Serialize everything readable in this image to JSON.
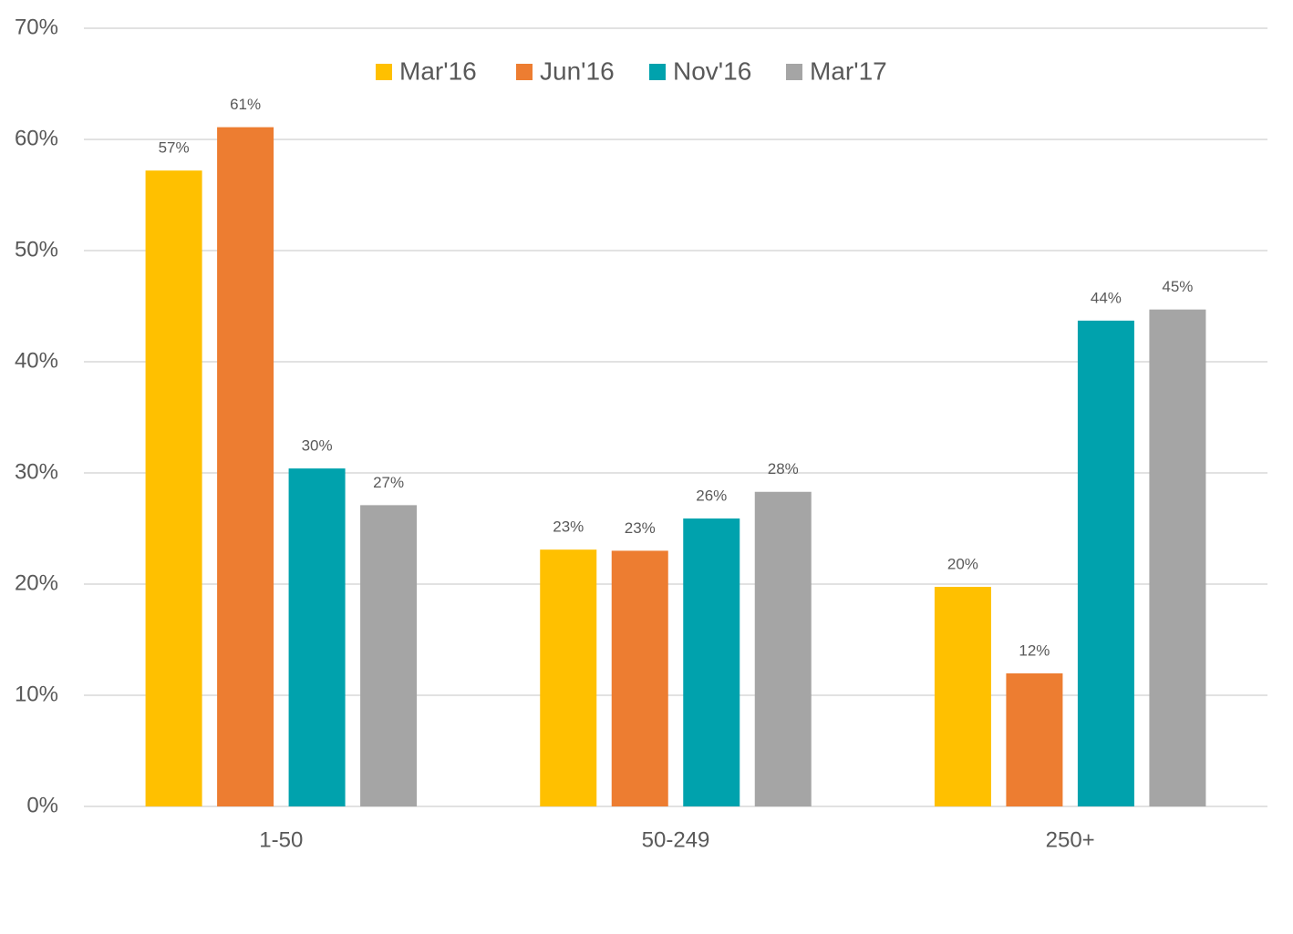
{
  "chart_data": {
    "type": "bar",
    "categories": [
      "1-50",
      "50-249",
      "250+"
    ],
    "series": [
      {
        "name": "Mar'16",
        "color": "#ffc000",
        "values": [
          57.2,
          23.1,
          19.75
        ],
        "value_labels": [
          "57%",
          "23%",
          "20%"
        ]
      },
      {
        "name": "Jun'16",
        "color": "#ed7d31",
        "values": [
          61.1,
          23.0,
          11.97
        ],
        "value_labels": [
          "61%",
          "23%",
          "12%"
        ]
      },
      {
        "name": "Nov'16",
        "color": "#00a2ad",
        "values": [
          30.4,
          25.9,
          43.7
        ],
        "value_labels": [
          "30%",
          "26%",
          "44%"
        ]
      },
      {
        "name": "Mar'17",
        "color": "#a5a5a5",
        "values": [
          27.1,
          28.3,
          44.7
        ],
        "value_labels": [
          "27%",
          "28%",
          "45%"
        ]
      }
    ],
    "ylim": [
      0,
      70
    ],
    "yticks": [
      {
        "value": 0,
        "label": "0%"
      },
      {
        "value": 10,
        "label": "10%"
      },
      {
        "value": 20,
        "label": "20%"
      },
      {
        "value": 30,
        "label": "30%"
      },
      {
        "value": 40,
        "label": "40%"
      },
      {
        "value": 50,
        "label": "50%"
      },
      {
        "value": 60,
        "label": "60%"
      },
      {
        "value": 70,
        "label": "70%"
      }
    ],
    "grid": true,
    "legend": "top"
  }
}
